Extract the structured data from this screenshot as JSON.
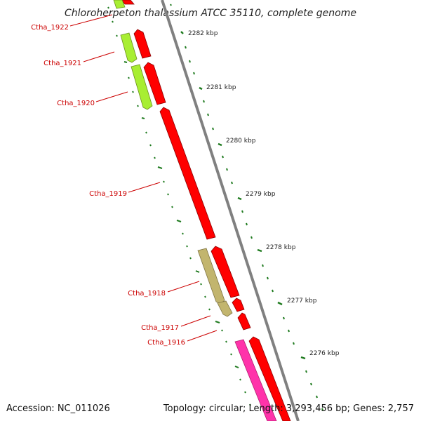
{
  "title": "Chloroherpeton thalassium ATCC 35110, complete genome",
  "footer": {
    "accession": "Accession: NC_011026",
    "topology": "Topology: circular; Length: 3,293,456 bp; Genes: 2,757"
  },
  "scale_labels": [
    "2282 kbp",
    "2281 kbp",
    "2280 kbp",
    "2279 kbp",
    "2278 kbp",
    "2277 kbp",
    "2276 kbp"
  ],
  "gene_labels": [
    "Ctha_1922",
    "Ctha_1921",
    "Ctha_1920",
    "Ctha_1919",
    "Ctha_1918",
    "Ctha_1917",
    "Ctha_1916"
  ],
  "colors": {
    "backbone": "#808080",
    "cds_red": "#ff0000",
    "cds_lime": "#a8ee32",
    "cds_khaki": "#c2b56e",
    "cds_pink": "#ff33aa",
    "tick_green": "#1e7a1e",
    "label_red": "#cc0000"
  }
}
